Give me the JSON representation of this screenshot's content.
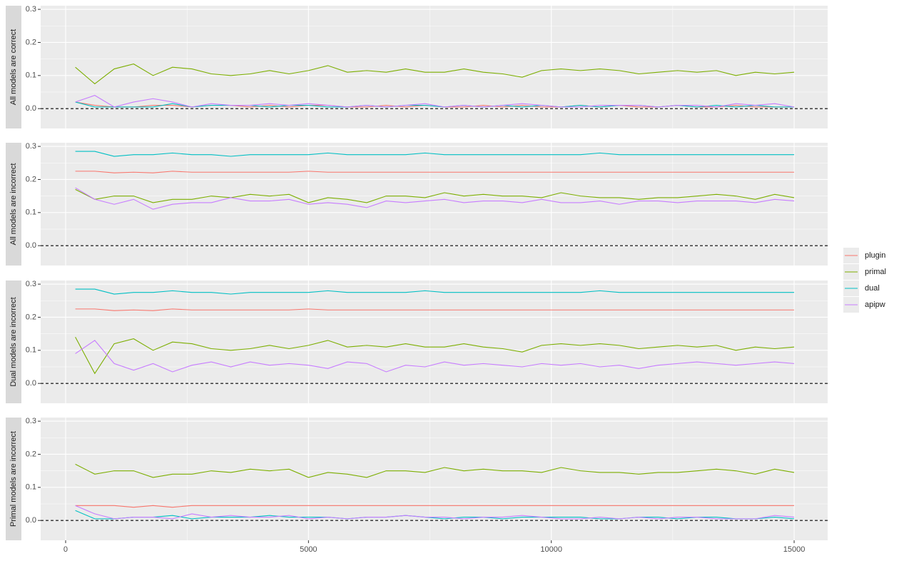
{
  "chart_data": {
    "type": "line",
    "x": [
      200,
      600,
      1000,
      1400,
      1800,
      2200,
      2600,
      3000,
      3400,
      3800,
      4200,
      4600,
      5000,
      5400,
      5800,
      6200,
      6600,
      7000,
      7400,
      7800,
      8200,
      8600,
      9000,
      9400,
      9800,
      10200,
      10600,
      11000,
      11400,
      11800,
      12200,
      12600,
      13000,
      13400,
      13800,
      14200,
      14600,
      15000
    ],
    "xlim": [
      -514,
      15690
    ],
    "xticks": [
      0,
      5000,
      10000,
      15000
    ],
    "ylim": [
      -0.06,
      0.311
    ],
    "yticks": [
      {
        "value": 0,
        "label": "0.0"
      },
      0.1,
      0.2,
      0.3
    ],
    "hline": 0,
    "grid": true,
    "legend": "right",
    "series": [
      {
        "name": "plugin",
        "color": "#F8766D"
      },
      {
        "name": "primal",
        "color": "#7CAE00"
      },
      {
        "name": "dual",
        "color": "#00BFC4"
      },
      {
        "name": "apipw",
        "color": "#C77CFF"
      }
    ],
    "panels": [
      {
        "label": "All models are correct",
        "values": [
          [
            0.02,
            0.01,
            0.005,
            0.005,
            0.01,
            0.01,
            0.005,
            0.01,
            0.01,
            0.005,
            0.01,
            0.005,
            0.01,
            0.01,
            0.005,
            0.005,
            0.01,
            0.005,
            0.01,
            0.005,
            0.005,
            0.01,
            0.005,
            0.01,
            0.005,
            0.005,
            0.01,
            0.005,
            0.01,
            0.005,
            0.005,
            0.01,
            0.005,
            0.005,
            0.01,
            0.005,
            0.005,
            0.005
          ],
          [
            0.125,
            0.075,
            0.12,
            0.135,
            0.1,
            0.125,
            0.12,
            0.105,
            0.1,
            0.105,
            0.115,
            0.105,
            0.115,
            0.13,
            0.11,
            0.115,
            0.11,
            0.12,
            0.11,
            0.11,
            0.12,
            0.11,
            0.105,
            0.095,
            0.115,
            0.12,
            0.115,
            0.12,
            0.115,
            0.105,
            0.11,
            0.115,
            0.11,
            0.115,
            0.1,
            0.11,
            0.105,
            0.11
          ],
          [
            0.02,
            0.005,
            0.005,
            0.005,
            0.005,
            0.015,
            0.005,
            0.01,
            0.01,
            0.01,
            0.005,
            0.01,
            0.01,
            0.005,
            0.005,
            0.01,
            0.005,
            0.01,
            0.01,
            0.005,
            0.01,
            0.005,
            0.01,
            0.005,
            0.01,
            0.005,
            0.01,
            0.005,
            0.01,
            0.01,
            0.005,
            0.01,
            0.005,
            0.01,
            0.005,
            0.01,
            0.005,
            0.005
          ],
          [
            0.02,
            0.04,
            0.005,
            0.02,
            0.03,
            0.02,
            0.005,
            0.015,
            0.01,
            0.01,
            0.015,
            0.01,
            0.015,
            0.01,
            0.005,
            0.01,
            0.005,
            0.01,
            0.015,
            0.005,
            0.01,
            0.005,
            0.01,
            0.015,
            0.01,
            0.005,
            0.005,
            0.01,
            0.01,
            0.01,
            0.005,
            0.01,
            0.01,
            0.005,
            0.015,
            0.01,
            0.015,
            0.005
          ]
        ]
      },
      {
        "label": "All models are incorrect",
        "values": [
          [
            0.225,
            0.225,
            0.22,
            0.222,
            0.22,
            0.225,
            0.222,
            0.222,
            0.222,
            0.222,
            0.222,
            0.222,
            0.225,
            0.222,
            0.222,
            0.222,
            0.222,
            0.222,
            0.222,
            0.222,
            0.222,
            0.222,
            0.222,
            0.222,
            0.222,
            0.222,
            0.222,
            0.222,
            0.222,
            0.222,
            0.222,
            0.222,
            0.222,
            0.222,
            0.222,
            0.222,
            0.222,
            0.222
          ],
          [
            0.17,
            0.14,
            0.15,
            0.15,
            0.13,
            0.14,
            0.14,
            0.15,
            0.145,
            0.155,
            0.15,
            0.155,
            0.13,
            0.145,
            0.14,
            0.13,
            0.15,
            0.15,
            0.145,
            0.16,
            0.15,
            0.155,
            0.15,
            0.15,
            0.145,
            0.16,
            0.15,
            0.145,
            0.145,
            0.14,
            0.145,
            0.145,
            0.15,
            0.155,
            0.15,
            0.14,
            0.155,
            0.145
          ],
          [
            0.285,
            0.285,
            0.27,
            0.275,
            0.275,
            0.28,
            0.275,
            0.275,
            0.27,
            0.275,
            0.275,
            0.275,
            0.275,
            0.28,
            0.275,
            0.275,
            0.275,
            0.275,
            0.28,
            0.275,
            0.275,
            0.275,
            0.275,
            0.275,
            0.275,
            0.275,
            0.275,
            0.28,
            0.275,
            0.275,
            0.275,
            0.275,
            0.275,
            0.275,
            0.275,
            0.275,
            0.275,
            0.275
          ],
          [
            0.175,
            0.14,
            0.125,
            0.14,
            0.11,
            0.125,
            0.13,
            0.13,
            0.145,
            0.135,
            0.135,
            0.14,
            0.125,
            0.13,
            0.125,
            0.115,
            0.135,
            0.13,
            0.135,
            0.14,
            0.13,
            0.135,
            0.135,
            0.13,
            0.14,
            0.13,
            0.13,
            0.135,
            0.125,
            0.135,
            0.135,
            0.13,
            0.135,
            0.135,
            0.135,
            0.13,
            0.14,
            0.135
          ]
        ]
      },
      {
        "label": "Dual models are incorrect",
        "values": [
          [
            0.225,
            0.225,
            0.22,
            0.222,
            0.22,
            0.225,
            0.222,
            0.222,
            0.222,
            0.222,
            0.222,
            0.222,
            0.225,
            0.222,
            0.222,
            0.222,
            0.222,
            0.222,
            0.222,
            0.222,
            0.222,
            0.222,
            0.222,
            0.222,
            0.222,
            0.222,
            0.222,
            0.222,
            0.222,
            0.222,
            0.222,
            0.222,
            0.222,
            0.222,
            0.222,
            0.222,
            0.222,
            0.222
          ],
          [
            0.14,
            0.03,
            0.12,
            0.135,
            0.1,
            0.125,
            0.12,
            0.105,
            0.1,
            0.105,
            0.115,
            0.105,
            0.115,
            0.13,
            0.11,
            0.115,
            0.11,
            0.12,
            0.11,
            0.11,
            0.12,
            0.11,
            0.105,
            0.095,
            0.115,
            0.12,
            0.115,
            0.12,
            0.115,
            0.105,
            0.11,
            0.115,
            0.11,
            0.115,
            0.1,
            0.11,
            0.105,
            0.11
          ],
          [
            0.285,
            0.285,
            0.27,
            0.275,
            0.275,
            0.28,
            0.275,
            0.275,
            0.27,
            0.275,
            0.275,
            0.275,
            0.275,
            0.28,
            0.275,
            0.275,
            0.275,
            0.275,
            0.28,
            0.275,
            0.275,
            0.275,
            0.275,
            0.275,
            0.275,
            0.275,
            0.275,
            0.28,
            0.275,
            0.275,
            0.275,
            0.275,
            0.275,
            0.275,
            0.275,
            0.275,
            0.275,
            0.275
          ],
          [
            0.09,
            0.13,
            0.06,
            0.04,
            0.06,
            0.035,
            0.055,
            0.065,
            0.05,
            0.065,
            0.055,
            0.06,
            0.055,
            0.045,
            0.065,
            0.06,
            0.035,
            0.055,
            0.05,
            0.065,
            0.055,
            0.06,
            0.055,
            0.05,
            0.06,
            0.055,
            0.06,
            0.05,
            0.055,
            0.045,
            0.055,
            0.06,
            0.065,
            0.06,
            0.055,
            0.06,
            0.065,
            0.06
          ]
        ]
      },
      {
        "label": "Primal models are incorrect",
        "values": [
          [
            0.045,
            0.045,
            0.045,
            0.04,
            0.045,
            0.04,
            0.045,
            0.045,
            0.045,
            0.045,
            0.045,
            0.045,
            0.045,
            0.045,
            0.045,
            0.045,
            0.045,
            0.045,
            0.045,
            0.045,
            0.045,
            0.045,
            0.045,
            0.045,
            0.045,
            0.045,
            0.045,
            0.045,
            0.045,
            0.045,
            0.045,
            0.045,
            0.045,
            0.045,
            0.045,
            0.045,
            0.045,
            0.045
          ],
          [
            0.17,
            0.14,
            0.15,
            0.15,
            0.13,
            0.14,
            0.14,
            0.15,
            0.145,
            0.155,
            0.15,
            0.155,
            0.13,
            0.145,
            0.14,
            0.13,
            0.15,
            0.15,
            0.145,
            0.16,
            0.15,
            0.155,
            0.15,
            0.15,
            0.145,
            0.16,
            0.15,
            0.145,
            0.145,
            0.14,
            0.145,
            0.145,
            0.15,
            0.155,
            0.15,
            0.14,
            0.155,
            0.145
          ],
          [
            0.03,
            0.005,
            0.005,
            0.01,
            0.01,
            0.015,
            0.005,
            0.01,
            0.01,
            0.01,
            0.015,
            0.01,
            0.01,
            0.01,
            0.005,
            0.01,
            0.01,
            0.015,
            0.01,
            0.005,
            0.01,
            0.01,
            0.005,
            0.01,
            0.01,
            0.01,
            0.01,
            0.005,
            0.005,
            0.01,
            0.01,
            0.005,
            0.01,
            0.01,
            0.005,
            0.005,
            0.01,
            0.005
          ],
          [
            0.045,
            0.02,
            0.005,
            0.01,
            0.01,
            0.005,
            0.02,
            0.01,
            0.015,
            0.01,
            0.01,
            0.015,
            0.005,
            0.01,
            0.005,
            0.01,
            0.01,
            0.015,
            0.01,
            0.01,
            0.005,
            0.01,
            0.01,
            0.015,
            0.01,
            0.005,
            0.005,
            0.01,
            0.005,
            0.01,
            0.005,
            0.01,
            0.01,
            0.005,
            0.005,
            0.005,
            0.015,
            0.01
          ]
        ]
      }
    ]
  }
}
